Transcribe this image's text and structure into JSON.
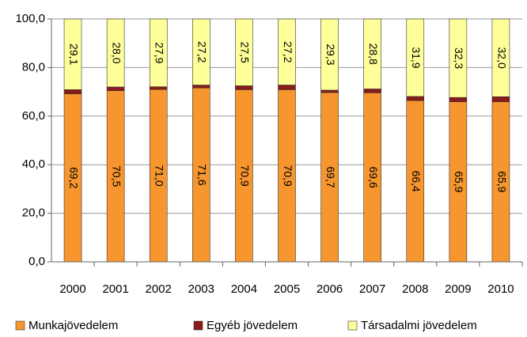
{
  "chart_data": {
    "type": "stacked_bar",
    "categories": [
      "2000",
      "2001",
      "2002",
      "2003",
      "2004",
      "2005",
      "2006",
      "2007",
      "2008",
      "2009",
      "2010"
    ],
    "series": [
      {
        "name": "Munkajövedelem",
        "color": "#f7962f",
        "values": [
          69.2,
          70.5,
          71.0,
          71.6,
          70.9,
          70.9,
          69.7,
          69.6,
          66.4,
          65.9,
          65.9
        ],
        "value_labels": [
          "69,2",
          "70,5",
          "71,0",
          "71,6",
          "70,9",
          "70,9",
          "69,7",
          "69,6",
          "66,4",
          "65,9",
          "65,9"
        ]
      },
      {
        "name": "Egyéb jövedelem",
        "color": "#8b1a1a",
        "values": [
          1.7,
          1.5,
          1.1,
          1.2,
          1.6,
          1.9,
          1.0,
          1.6,
          1.7,
          1.8,
          2.1
        ]
      },
      {
        "name": "Társadalmi jövedelem",
        "color": "#ffff99",
        "values": [
          29.1,
          28.0,
          27.9,
          27.2,
          27.5,
          27.2,
          29.3,
          28.8,
          31.9,
          32.3,
          32.0
        ],
        "value_labels": [
          "29,1",
          "28,0",
          "27,9",
          "27,2",
          "27,5",
          "27,2",
          "29,3",
          "28,8",
          "31,9",
          "32,3",
          "32,0"
        ]
      }
    ],
    "ylim": [
      0,
      100
    ],
    "yticks": [
      {
        "value": 0,
        "label": "0,0"
      },
      {
        "value": 20,
        "label": "20,0"
      },
      {
        "value": 40,
        "label": "40,0"
      },
      {
        "value": 60,
        "label": "60,0"
      },
      {
        "value": 80,
        "label": "80,0"
      },
      {
        "value": 100,
        "label": "100,0"
      }
    ],
    "grid": true,
    "legend": "bottom"
  }
}
